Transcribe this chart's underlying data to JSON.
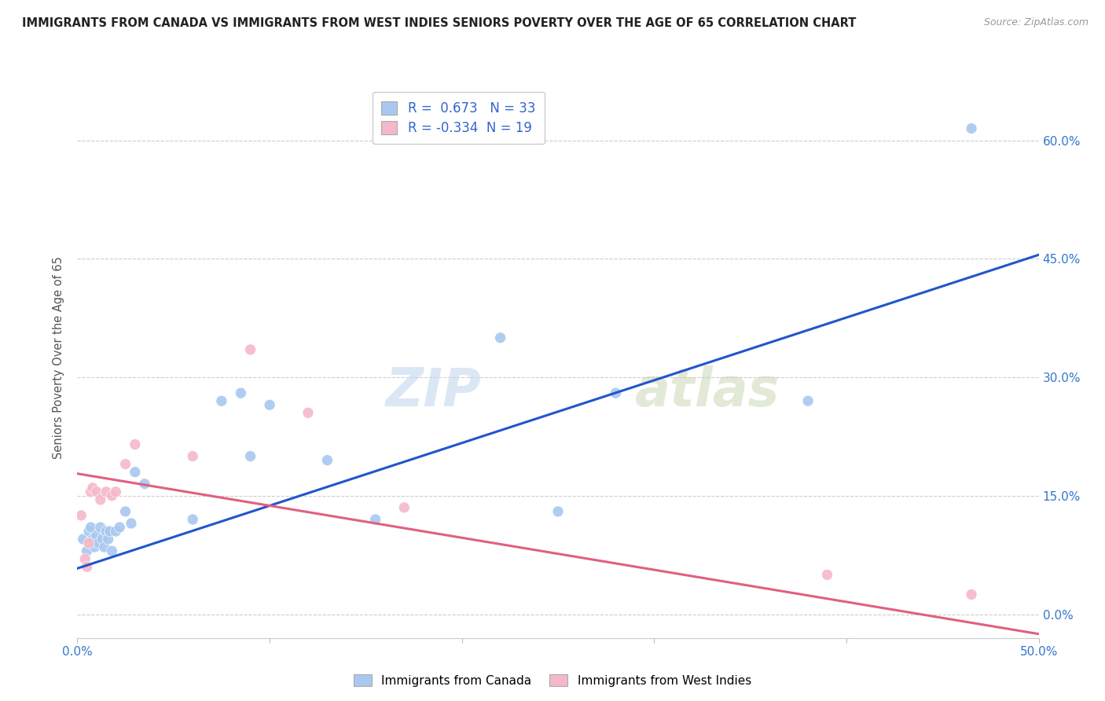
{
  "title": "IMMIGRANTS FROM CANADA VS IMMIGRANTS FROM WEST INDIES SENIORS POVERTY OVER THE AGE OF 65 CORRELATION CHART",
  "source": "Source: ZipAtlas.com",
  "ylabel_label": "Seniors Poverty Over the Age of 65",
  "xlim": [
    0.0,
    0.5
  ],
  "ylim": [
    -0.03,
    0.68
  ],
  "canada_R": 0.673,
  "canada_N": 33,
  "wi_R": -0.334,
  "wi_N": 19,
  "canada_color": "#a8c8f0",
  "wi_color": "#f5b8c8",
  "canada_line_color": "#2255cc",
  "wi_line_color": "#e06080",
  "watermark_zip": "ZIP",
  "watermark_atlas": "atlas",
  "canada_x": [
    0.003,
    0.005,
    0.006,
    0.007,
    0.008,
    0.009,
    0.01,
    0.011,
    0.012,
    0.013,
    0.014,
    0.015,
    0.016,
    0.017,
    0.018,
    0.02,
    0.022,
    0.025,
    0.028,
    0.03,
    0.035,
    0.06,
    0.075,
    0.085,
    0.09,
    0.1,
    0.13,
    0.155,
    0.22,
    0.25,
    0.28,
    0.38,
    0.465
  ],
  "canada_y": [
    0.095,
    0.08,
    0.105,
    0.11,
    0.095,
    0.085,
    0.1,
    0.09,
    0.11,
    0.095,
    0.085,
    0.105,
    0.095,
    0.105,
    0.08,
    0.105,
    0.11,
    0.13,
    0.115,
    0.18,
    0.165,
    0.12,
    0.27,
    0.28,
    0.2,
    0.265,
    0.195,
    0.12,
    0.35,
    0.13,
    0.28,
    0.27,
    0.615
  ],
  "wi_x": [
    0.002,
    0.004,
    0.005,
    0.006,
    0.007,
    0.008,
    0.01,
    0.012,
    0.015,
    0.018,
    0.02,
    0.025,
    0.03,
    0.06,
    0.09,
    0.12,
    0.17,
    0.39,
    0.465
  ],
  "wi_y": [
    0.125,
    0.07,
    0.06,
    0.09,
    0.155,
    0.16,
    0.155,
    0.145,
    0.155,
    0.15,
    0.155,
    0.19,
    0.215,
    0.2,
    0.335,
    0.255,
    0.135,
    0.05,
    0.025
  ],
  "canada_line_x0": 0.0,
  "canada_line_x1": 0.5,
  "canada_line_y0": 0.058,
  "canada_line_y1": 0.455,
  "wi_line_x0": 0.0,
  "wi_line_x1": 0.5,
  "wi_line_y0": 0.178,
  "wi_line_y1": -0.025,
  "yticks": [
    0.0,
    0.15,
    0.3,
    0.45,
    0.6
  ],
  "ytick_labels": [
    "0.0%",
    "15.0%",
    "30.0%",
    "45.0%",
    "60.0%"
  ],
  "xtick_labels_show": [
    "0.0%",
    "50.0%"
  ]
}
